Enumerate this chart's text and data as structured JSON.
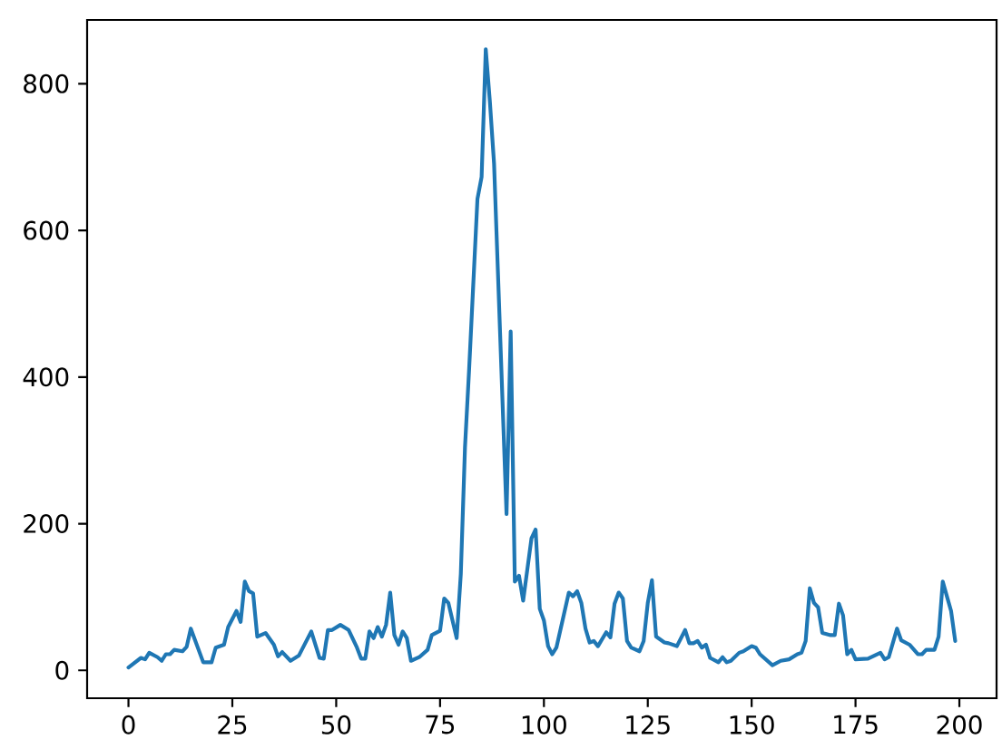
{
  "chart_data": {
    "type": "line",
    "color": "#1f77b4",
    "marker": "none",
    "line_style": "solid",
    "x": [
      0,
      3,
      4,
      5,
      7,
      8,
      9,
      10,
      11,
      13,
      14,
      15,
      18,
      20,
      21,
      23,
      24,
      26,
      27,
      28,
      29,
      30,
      31,
      33,
      35,
      36,
      37,
      39,
      41,
      44,
      46,
      47,
      48,
      49,
      51,
      53,
      55,
      56,
      57,
      58,
      59,
      60,
      61,
      62,
      63,
      64,
      65,
      66,
      67,
      68,
      70,
      72,
      73,
      75,
      76,
      77,
      79,
      80,
      81,
      82,
      84,
      85,
      86,
      87,
      88,
      91,
      92,
      93,
      94,
      95,
      97,
      98,
      99,
      100,
      101,
      102,
      103,
      106,
      107,
      108,
      109,
      110,
      111,
      112,
      113,
      115,
      116,
      117,
      118,
      119,
      120,
      121,
      123,
      124,
      125,
      126,
      127,
      129,
      130,
      132,
      134,
      135,
      136,
      137,
      138,
      139,
      140,
      142,
      143,
      144,
      145,
      147,
      148,
      150,
      151,
      152,
      155,
      157,
      159,
      161,
      162,
      163,
      164,
      165,
      166,
      167,
      169,
      170,
      171,
      172,
      173,
      174,
      175,
      178,
      181,
      182,
      183,
      185,
      186,
      188,
      190,
      191,
      192,
      194,
      195,
      196,
      197,
      198,
      199
    ],
    "values": [
      4,
      17,
      15,
      24,
      18,
      13,
      22,
      22,
      28,
      26,
      32,
      57,
      11,
      11,
      31,
      35,
      59,
      81,
      66,
      121,
      108,
      105,
      46,
      51,
      35,
      19,
      25,
      13,
      20,
      53,
      17,
      16,
      55,
      55,
      62,
      55,
      31,
      16,
      16,
      53,
      44,
      59,
      46,
      62,
      106,
      48,
      35,
      53,
      44,
      13,
      18,
      28,
      48,
      54,
      98,
      92,
      44,
      132,
      304,
      411,
      643,
      673,
      847,
      775,
      691,
      213,
      462,
      121,
      129,
      95,
      180,
      192,
      84,
      68,
      33,
      22,
      31,
      106,
      101,
      108,
      92,
      57,
      38,
      40,
      33,
      52,
      45,
      91,
      106,
      98,
      40,
      31,
      26,
      40,
      92,
      123,
      46,
      38,
      37,
      33,
      55,
      37,
      37,
      40,
      31,
      35,
      17,
      11,
      18,
      11,
      13,
      24,
      26,
      33,
      31,
      22,
      7,
      13,
      15,
      22,
      24,
      40,
      112,
      92,
      86,
      51,
      48,
      48,
      91,
      75,
      22,
      28,
      15,
      16,
      24,
      15,
      18,
      57,
      41,
      35,
      22,
      22,
      28,
      28,
      46,
      121,
      101,
      81,
      40
    ],
    "xlim": [
      -9.95,
      208.95
    ],
    "ylim": [
      -38,
      887
    ],
    "xticks": [
      0,
      25,
      50,
      75,
      100,
      125,
      150,
      175,
      200
    ],
    "yticks": [
      0,
      200,
      400,
      600,
      800
    ]
  }
}
